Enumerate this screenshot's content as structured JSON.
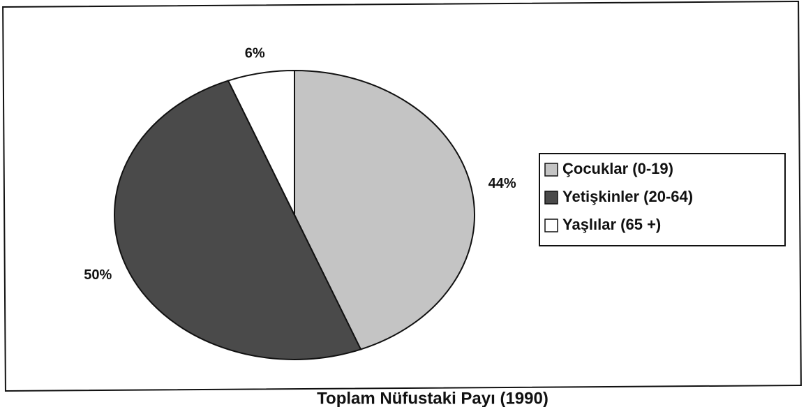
{
  "chart_data": {
    "type": "pie",
    "categories": [
      "Çocuklar (0-19)",
      "Yetişkinler (20-64)",
      "Yaşlılar (65 +)"
    ],
    "values": [
      44,
      50,
      6
    ],
    "value_labels": [
      "44%",
      "50%",
      "6%"
    ],
    "colors": [
      "#c4c4c4",
      "#4a4a4a",
      "#ffffff"
    ],
    "caption": "Toplam Nüfustaki Payı (1990)",
    "legend": "right"
  }
}
